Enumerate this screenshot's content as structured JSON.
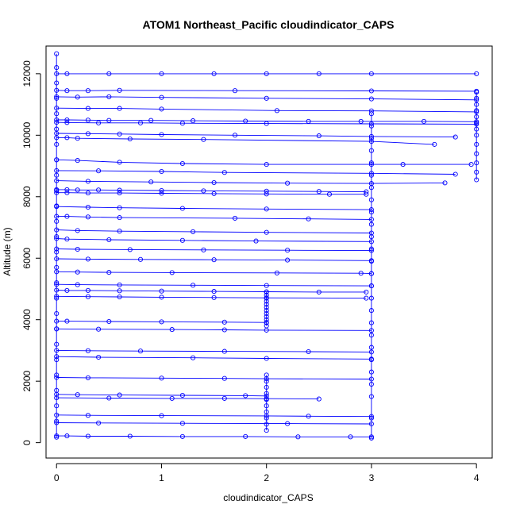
{
  "chart_data": {
    "type": "line",
    "title": "ATOM1 Northeast_Pacific cloudindicator_CAPS",
    "xlabel": "cloudindicator_CAPS",
    "ylabel": "Altitude (m)",
    "xlim": [
      -0.1,
      4.15
    ],
    "ylim": [
      -500,
      12900
    ],
    "xticks": [
      "0",
      "1",
      "2",
      "3",
      "4"
    ],
    "yticks": [
      "0",
      "2000",
      "4000",
      "6000",
      "8000",
      "10000",
      "12000"
    ],
    "color": "#0000ff",
    "series": [
      {
        "x": [
          0,
          0.1,
          0.5,
          1,
          1.5,
          2,
          2.5,
          3,
          4
        ],
        "y": [
          12000,
          12000,
          12000,
          12000,
          12000,
          12000,
          12000,
          12000,
          12000
        ]
      },
      {
        "x": [
          0,
          0.1,
          0.3,
          0.6,
          1.7,
          3,
          4
        ],
        "y": [
          11460,
          11450,
          11450,
          11460,
          11450,
          11440,
          11430
        ]
      },
      {
        "x": [
          0,
          0.2,
          0.5,
          1,
          2,
          3,
          4
        ],
        "y": [
          11250,
          11240,
          11250,
          11230,
          11200,
          11180,
          11150
        ]
      },
      {
        "x": [
          0,
          0.3,
          0.6,
          1,
          2.1,
          3,
          4
        ],
        "y": [
          10880,
          10870,
          10870,
          10850,
          10800,
          10790,
          10760
        ]
      },
      {
        "x": [
          0,
          0.1,
          0.3,
          0.5,
          0.9,
          1.3,
          1.8,
          2.4,
          2.9,
          3.5,
          4
        ],
        "y": [
          10500,
          10500,
          10490,
          10480,
          10480,
          10470,
          10460,
          10450,
          10450,
          10450,
          10440
        ]
      },
      {
        "x": [
          0,
          0.1,
          0.4,
          0.8,
          1.2,
          2,
          3,
          4
        ],
        "y": [
          10420,
          10410,
          10400,
          10400,
          10390,
          10380,
          10370,
          10360
        ]
      },
      {
        "x": [
          0,
          0.3,
          0.6,
          1,
          1.7,
          2.5,
          3,
          3.8
        ],
        "y": [
          10060,
          10050,
          10040,
          10020,
          10000,
          9980,
          9960,
          9940
        ]
      },
      {
        "x": [
          0,
          0.1,
          0.2,
          0.7,
          1.4,
          3,
          3.6
        ],
        "y": [
          9920,
          9920,
          9900,
          9880,
          9860,
          9800,
          9700
        ]
      },
      {
        "x": [
          0,
          0.2,
          0.6,
          1.2,
          2,
          3,
          3.3,
          3.95
        ],
        "y": [
          9200,
          9180,
          9120,
          9080,
          9050,
          9050,
          9050,
          9050
        ]
      },
      {
        "x": [
          0,
          0.4,
          1,
          1.6,
          3,
          3.8
        ],
        "y": [
          8850,
          8840,
          8820,
          8790,
          8760,
          8730
        ]
      },
      {
        "x": [
          0,
          0.3,
          0.9,
          1.5,
          2.2,
          3,
          3.7
        ],
        "y": [
          8520,
          8500,
          8480,
          8460,
          8440,
          8430,
          8450
        ]
      },
      {
        "x": [
          0,
          0.1,
          0.2,
          0.4,
          0.6,
          1,
          1.4,
          2,
          2.5,
          2.95
        ],
        "y": [
          8230,
          8230,
          8220,
          8220,
          8210,
          8200,
          8190,
          8180,
          8170,
          8160
        ]
      },
      {
        "x": [
          0,
          0.1,
          0.3,
          0.6,
          1,
          1.5,
          2,
          2.6,
          2.95
        ],
        "y": [
          8130,
          8130,
          8120,
          8120,
          8110,
          8100,
          8090,
          8080,
          8080
        ]
      },
      {
        "x": [
          0,
          0.3,
          0.6,
          1.2,
          2,
          3
        ],
        "y": [
          7680,
          7660,
          7640,
          7620,
          7600,
          7580
        ]
      },
      {
        "x": [
          0,
          0.1,
          0.3,
          0.6,
          1.7,
          2.4,
          3
        ],
        "y": [
          7360,
          7360,
          7340,
          7320,
          7300,
          7280,
          7260
        ]
      },
      {
        "x": [
          0,
          0.2,
          0.6,
          1.3,
          2,
          3
        ],
        "y": [
          6920,
          6900,
          6880,
          6860,
          6840,
          6820
        ]
      },
      {
        "x": [
          0,
          0.1,
          0.5,
          1.2,
          1.9,
          3
        ],
        "y": [
          6640,
          6620,
          6600,
          6580,
          6560,
          6540
        ]
      },
      {
        "x": [
          0,
          0.2,
          0.7,
          1.4,
          2.2,
          3
        ],
        "y": [
          6300,
          6290,
          6280,
          6270,
          6260,
          6250
        ]
      },
      {
        "x": [
          0,
          0.3,
          0.8,
          1.5,
          2.2,
          3
        ],
        "y": [
          5980,
          5970,
          5960,
          5950,
          5940,
          5920
        ]
      },
      {
        "x": [
          0,
          0.2,
          0.5,
          1.1,
          2.1,
          2.9,
          3
        ],
        "y": [
          5560,
          5550,
          5540,
          5530,
          5520,
          5510,
          5500
        ]
      },
      {
        "x": [
          0,
          0.2,
          0.6,
          1.3,
          2,
          3
        ],
        "y": [
          5150,
          5140,
          5130,
          5120,
          5110,
          5100
        ]
      },
      {
        "x": [
          0,
          0.1,
          0.3,
          0.6,
          1,
          1.5,
          2,
          2.5,
          2.95
        ],
        "y": [
          4960,
          4950,
          4950,
          4940,
          4930,
          4920,
          4910,
          4900,
          4900
        ]
      },
      {
        "x": [
          0,
          0.3,
          0.6,
          1,
          1.5,
          2,
          2.95
        ],
        "y": [
          4760,
          4750,
          4740,
          4730,
          4720,
          4710,
          4700
        ]
      },
      {
        "x": [
          0,
          0.1,
          0.5,
          1,
          1.6,
          2
        ],
        "y": [
          3950,
          3950,
          3940,
          3930,
          3920,
          3910
        ]
      },
      {
        "x": [
          0,
          0.4,
          1.1,
          1.6,
          2,
          3
        ],
        "y": [
          3700,
          3690,
          3680,
          3670,
          3660,
          3650
        ]
      },
      {
        "x": [
          0,
          0.3,
          0.8,
          1.6,
          2.4,
          3
        ],
        "y": [
          3000,
          2990,
          2980,
          2970,
          2960,
          2950
        ]
      },
      {
        "x": [
          0,
          0.4,
          1.3,
          2,
          3
        ],
        "y": [
          2800,
          2780,
          2760,
          2740,
          2720
        ]
      },
      {
        "x": [
          0,
          0.3,
          1,
          1.6,
          2,
          3
        ],
        "y": [
          2120,
          2110,
          2100,
          2090,
          2080,
          2070
        ]
      },
      {
        "x": [
          0,
          0.2,
          0.6,
          1.2,
          1.8,
          2
        ],
        "y": [
          1570,
          1560,
          1550,
          1540,
          1530,
          1520
        ]
      },
      {
        "x": [
          0,
          0.5,
          1.1,
          1.6,
          2,
          2.5
        ],
        "y": [
          1460,
          1450,
          1440,
          1440,
          1430,
          1420
        ]
      },
      {
        "x": [
          0,
          0.3,
          1,
          2,
          2.4,
          3
        ],
        "y": [
          900,
          890,
          880,
          870,
          860,
          850
        ]
      },
      {
        "x": [
          0,
          0.4,
          1.2,
          2.2,
          3
        ],
        "y": [
          650,
          640,
          630,
          620,
          610
        ]
      },
      {
        "x": [
          0,
          0.1,
          0.3,
          0.7,
          1.2,
          1.8,
          2.3,
          2.8,
          3
        ],
        "y": [
          220,
          220,
          210,
          210,
          200,
          200,
          190,
          190,
          190
        ]
      },
      {
        "x": [
          0,
          0,
          0,
          0,
          0,
          0,
          0,
          0,
          0,
          0,
          0,
          0,
          0,
          0,
          0,
          0,
          0,
          0,
          0,
          0,
          0,
          0,
          0,
          0,
          0,
          0
        ],
        "y": [
          12650,
          12200,
          11700,
          11200,
          10700,
          10200,
          9700,
          9200,
          8700,
          8200,
          7700,
          7200,
          6700,
          6200,
          5700,
          5200,
          4700,
          4200,
          3700,
          3200,
          2700,
          2200,
          1700,
          1200,
          700,
          180
        ]
      },
      {
        "x": [
          3,
          3,
          3,
          3,
          3,
          3,
          3,
          3,
          3,
          3,
          3,
          3,
          3,
          3,
          3,
          3,
          3,
          3,
          3,
          3,
          3,
          3,
          3,
          3,
          3,
          3
        ],
        "y": [
          10700,
          10300,
          9900,
          9500,
          9100,
          8700,
          8300,
          7900,
          7500,
          7100,
          6700,
          6300,
          5900,
          5500,
          5100,
          4700,
          4300,
          3900,
          3500,
          3100,
          2700,
          2300,
          1900,
          1500,
          800,
          150
        ]
      },
      {
        "x": [
          4,
          4,
          4,
          4,
          4,
          4,
          4,
          4,
          4,
          4,
          4,
          4,
          4
        ],
        "y": [
          11400,
          11200,
          11000,
          10800,
          10600,
          10400,
          10200,
          10000,
          9700,
          9400,
          9100,
          8800,
          8550
        ]
      },
      {
        "x": [
          2,
          2,
          2,
          2,
          2,
          2,
          2,
          2,
          2,
          2,
          2,
          2
        ],
        "y": [
          4900,
          4800,
          4700,
          4600,
          4500,
          4400,
          4300,
          4200,
          4100,
          4000,
          3900,
          3800
        ]
      },
      {
        "x": [
          2,
          2,
          2,
          2,
          2,
          2,
          2,
          2,
          2,
          2
        ],
        "y": [
          2200,
          2000,
          1800,
          1600,
          1400,
          1200,
          1000,
          800,
          600,
          400
        ]
      }
    ]
  }
}
